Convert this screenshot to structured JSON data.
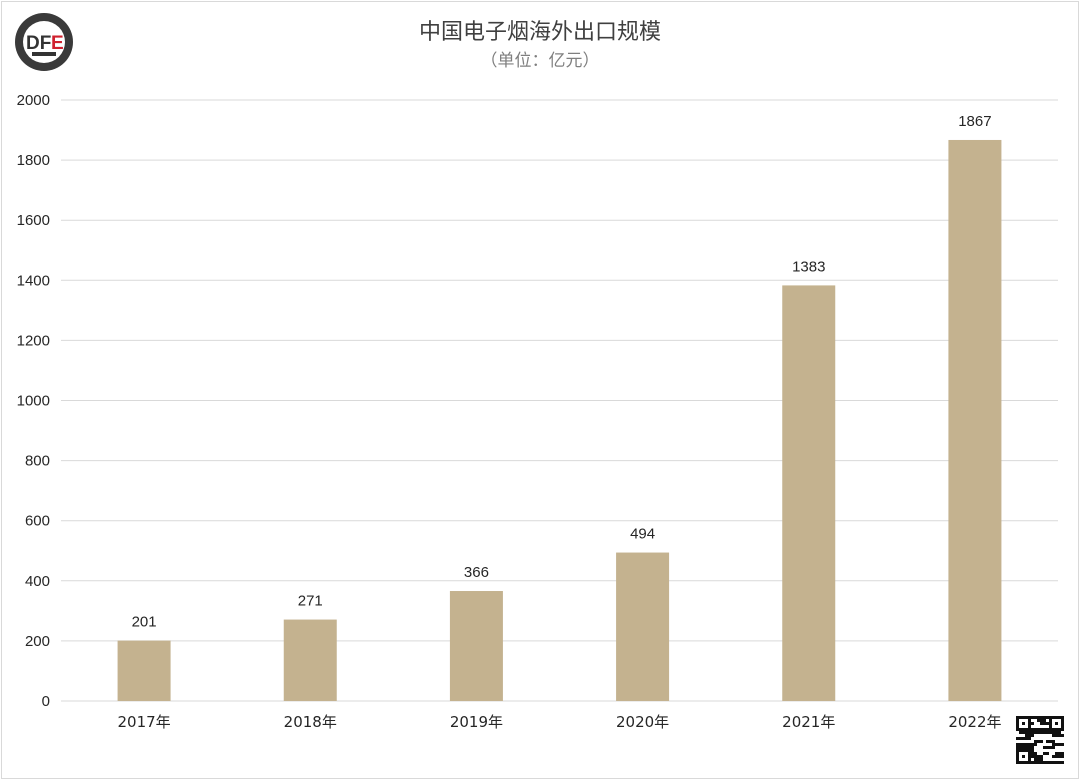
{
  "chart_data": {
    "type": "bar",
    "title": "中国电子烟海外出口规模",
    "subtitle": "（单位：亿元）",
    "categories": [
      "2017年",
      "2018年",
      "2019年",
      "2020年",
      "2021年",
      "2022年"
    ],
    "values": [
      201,
      271,
      366,
      494,
      1383,
      1867
    ],
    "ylim": [
      0,
      2000
    ],
    "yticks": [
      0,
      200,
      400,
      600,
      800,
      1000,
      1200,
      1400,
      1600,
      1800,
      2000
    ],
    "grid": true,
    "bar_color": "#c4b28f",
    "data_labels": true
  },
  "logo": {
    "text": "DFE",
    "icon": "dfe-logo"
  },
  "qr": {
    "icon": "qr-code"
  }
}
